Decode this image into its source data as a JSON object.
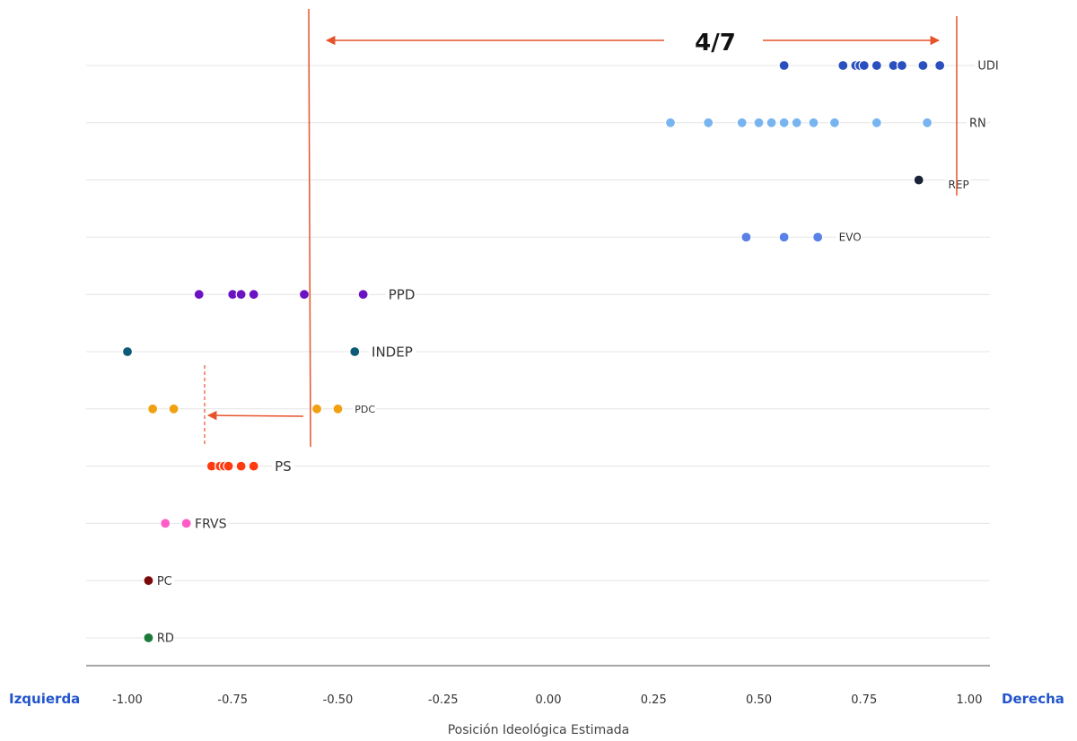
{
  "chart_data": {
    "type": "scatter",
    "xlabel": "Posición Ideológica Estimada",
    "xlim": [
      -1.0,
      1.0
    ],
    "x_ticks": [
      "-1.00",
      "-0.75",
      "-0.50",
      "-0.25",
      "0.00",
      "0.25",
      "0.50",
      "0.75",
      "1.00"
    ],
    "x_tick_values": [
      -1.0,
      -0.75,
      -0.5,
      -0.25,
      0.0,
      0.25,
      0.5,
      0.75,
      1.0
    ],
    "left_label": "Izquierda",
    "right_label": "Derecha",
    "side_label_color": "#2255cc",
    "grid": "horizontal",
    "series": [
      {
        "name": "UDI",
        "color": "#2a4fbf",
        "label_x": 1.02,
        "values": [
          0.56,
          0.7,
          0.73,
          0.74,
          0.75,
          0.78,
          0.82,
          0.84,
          0.89,
          0.93
        ]
      },
      {
        "name": "RN",
        "color": "#78b4f0",
        "label_x": 1.0,
        "values": [
          0.29,
          0.38,
          0.46,
          0.5,
          0.53,
          0.56,
          0.59,
          0.63,
          0.68,
          0.78,
          0.9
        ]
      },
      {
        "name": "REP",
        "color": "#1a2238",
        "label_x": 0.95,
        "values": [
          0.88
        ]
      },
      {
        "name": "EVO",
        "color": "#5a82e6",
        "label_x": 0.69,
        "values": [
          0.47,
          0.56,
          0.64
        ]
      },
      {
        "name": "PPD",
        "color": "#6a12c4",
        "label_x": -0.38,
        "values": [
          -0.83,
          -0.75,
          -0.73,
          -0.7,
          -0.58,
          -0.44
        ]
      },
      {
        "name": "INDEP",
        "color": "#0d5a78",
        "label_x": -0.42,
        "values": [
          -1.0,
          -0.46
        ]
      },
      {
        "name": "PDC",
        "color": "#f0a010",
        "label_x": -0.46,
        "values": [
          -0.94,
          -0.89,
          -0.55,
          -0.5
        ]
      },
      {
        "name": "PS",
        "color": "#ff3a10",
        "label_x": -0.65,
        "values": [
          -0.8,
          -0.78,
          -0.77,
          -0.76,
          -0.73,
          -0.7
        ]
      },
      {
        "name": "FRVS",
        "color": "#ff5cc8",
        "label_x": -0.84,
        "values": [
          -0.91,
          -0.86
        ]
      },
      {
        "name": "PC",
        "color": "#7a0a0a",
        "label_x": -0.93,
        "values": [
          -0.95
        ]
      },
      {
        "name": "RD",
        "color": "#1a7a3a",
        "label_x": -0.93,
        "values": [
          -0.95
        ]
      }
    ],
    "annotations": {
      "top_text": "4/7",
      "arrow_color": "#e8522a"
    }
  }
}
